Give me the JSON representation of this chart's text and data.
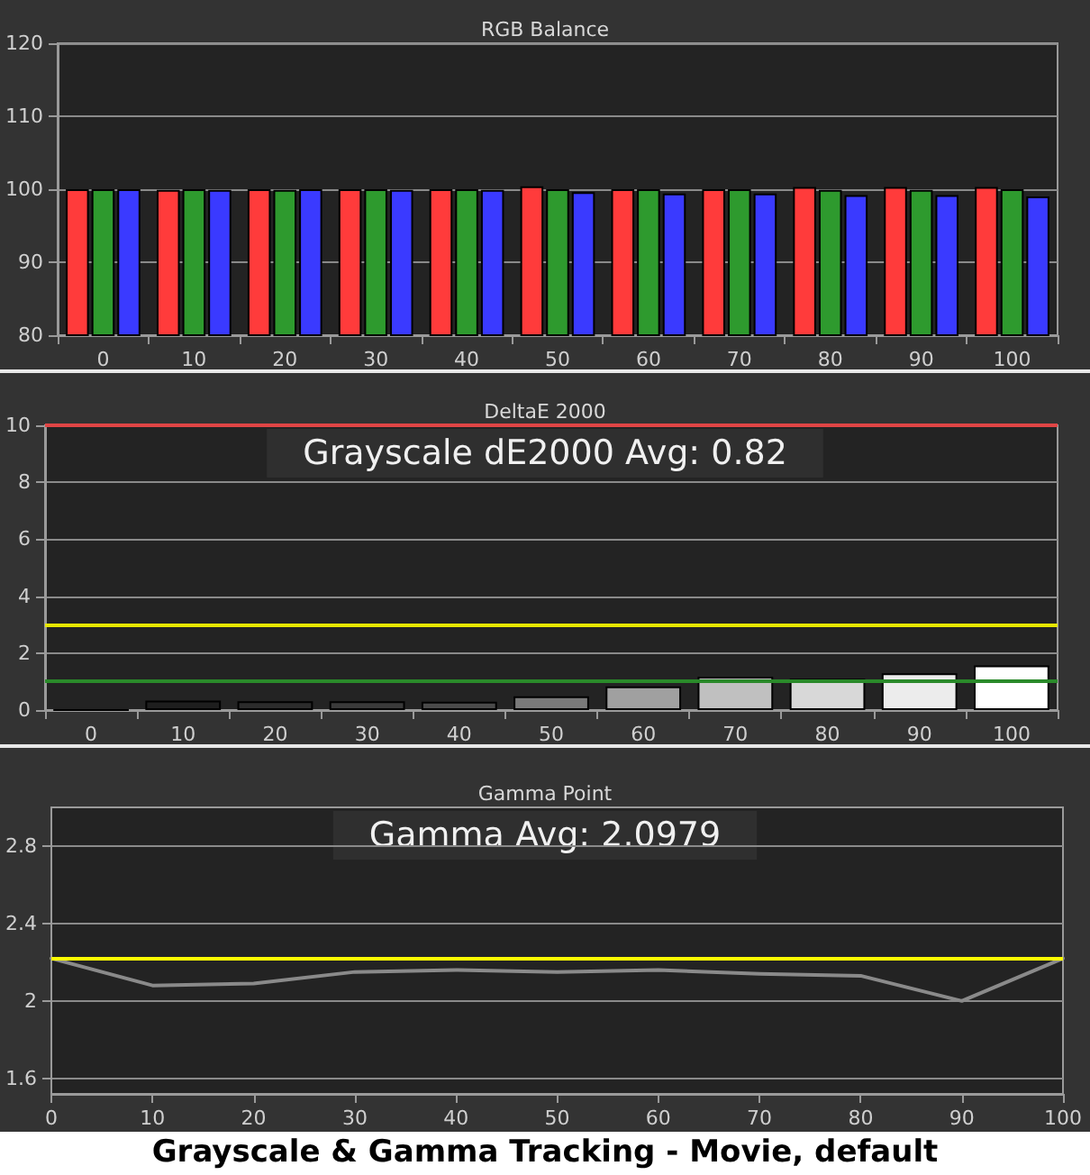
{
  "chart_data": [
    {
      "type": "bar",
      "title": "RGB Balance",
      "categories": [
        "0",
        "10",
        "20",
        "30",
        "40",
        "50",
        "60",
        "70",
        "80",
        "90",
        "100"
      ],
      "ylim": [
        80,
        120
      ],
      "yticks": [
        80,
        90,
        100,
        110,
        120
      ],
      "grid": "y",
      "series": [
        {
          "color": "#ff3b3b",
          "values": [
            100,
            99.9,
            100,
            100,
            100,
            100.4,
            100,
            100,
            100.3,
            100.3,
            100.3
          ]
        },
        {
          "color": "#2e9a2e",
          "values": [
            100,
            100,
            99.9,
            100,
            100,
            100,
            100,
            100,
            99.9,
            99.9,
            100
          ]
        },
        {
          "color": "#3a3aff",
          "values": [
            100,
            99.9,
            100,
            99.9,
            99.9,
            99.6,
            99.4,
            99.4,
            99.2,
            99.2,
            99.0
          ]
        }
      ]
    },
    {
      "type": "bar",
      "title": "DeltaE 2000",
      "categories": [
        "0",
        "10",
        "20",
        "30",
        "40",
        "50",
        "60",
        "70",
        "80",
        "90",
        "100"
      ],
      "ylim": [
        0,
        10
      ],
      "yticks": [
        0,
        2,
        4,
        6,
        8,
        10
      ],
      "grid": "y",
      "values": [
        0,
        0.33,
        0.31,
        0.31,
        0.29,
        0.48,
        0.83,
        1.17,
        1.1,
        1.29,
        1.57
      ],
      "colors": [
        "#000000",
        "#1e1e1e",
        "#2c2c2c",
        "#3a3a3a",
        "#4a4a4a",
        "#7a7a7a",
        "#a0a0a0",
        "#c0c0c0",
        "#d8d8d8",
        "#ececec",
        "#ffffff"
      ],
      "ref_lines": [
        {
          "axis": "y",
          "value": 10,
          "color": "#e04545"
        },
        {
          "axis": "y",
          "value": 3,
          "color": "#e6e600"
        },
        {
          "axis": "y",
          "value": 1,
          "color": "#2a8a2a"
        }
      ],
      "annotations": [
        "Grayscale dE2000 Avg: 0.82"
      ]
    },
    {
      "type": "line",
      "title": "Gamma Point",
      "x": [
        0,
        10,
        20,
        30,
        40,
        50,
        60,
        70,
        80,
        90,
        100
      ],
      "xlim": [
        0,
        100
      ],
      "xticks": [
        0,
        10,
        20,
        30,
        40,
        50,
        60,
        70,
        80,
        90,
        100
      ],
      "ylim": [
        1.52,
        3
      ],
      "yticks": [
        1.6,
        2,
        2.4,
        2.8
      ],
      "grid": "y",
      "marker": "none",
      "line_style": "solid",
      "series": [
        {
          "color": "#8a8a8a",
          "values": [
            2.22,
            2.08,
            2.09,
            2.15,
            2.16,
            2.15,
            2.16,
            2.14,
            2.13,
            2.0,
            2.22
          ]
        }
      ],
      "ref_lines": [
        {
          "axis": "y",
          "value": 2.22,
          "color": "#ffff00"
        }
      ],
      "annotations": [
        "Gamma Avg: 2.0979",
        "Grayscale & Gamma Tracking - Movie, default"
      ]
    }
  ]
}
